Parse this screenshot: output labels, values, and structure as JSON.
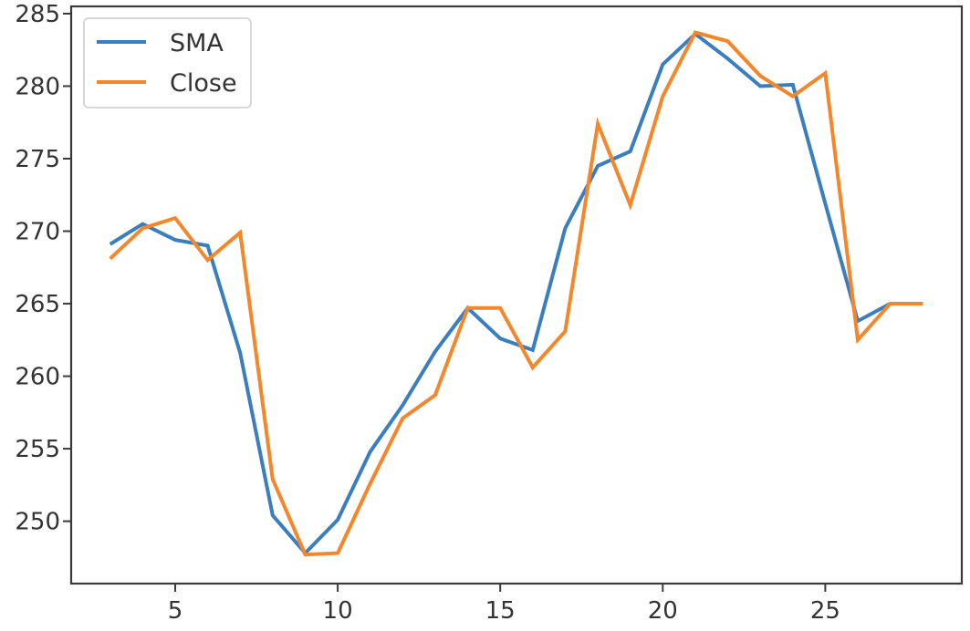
{
  "chart_data": {
    "type": "line",
    "x": [
      3,
      4,
      5,
      6,
      7,
      8,
      9,
      10,
      11,
      12,
      13,
      14,
      15,
      16,
      17,
      18,
      19,
      20,
      21,
      22,
      23,
      24,
      25,
      26,
      27,
      28
    ],
    "series": [
      {
        "name": "SMA",
        "color": "#3a7ebf",
        "x": [
          3,
          4,
          5,
          6,
          7,
          8,
          9,
          10,
          11,
          12,
          13,
          14,
          15,
          16,
          17,
          18,
          19,
          20,
          21,
          22,
          23,
          24,
          25,
          26,
          27
        ],
        "values": [
          269.1,
          270.5,
          269.4,
          269.0,
          261.6,
          250.4,
          247.8,
          250.1,
          254.8,
          258.0,
          261.7,
          264.7,
          262.6,
          261.8,
          270.2,
          274.5,
          275.5,
          281.5,
          283.6,
          281.9,
          280.0,
          280.1,
          271.9,
          263.8,
          265.0
        ]
      },
      {
        "name": "Close",
        "color": "#f5862a",
        "x": [
          3,
          4,
          5,
          6,
          7,
          8,
          9,
          10,
          11,
          12,
          13,
          14,
          15,
          16,
          17,
          18,
          19,
          20,
          21,
          22,
          23,
          24,
          25,
          26,
          27,
          28
        ],
        "values": [
          268.1,
          270.2,
          270.9,
          268.0,
          269.9,
          252.9,
          247.7,
          247.8,
          252.6,
          257.1,
          258.7,
          264.7,
          264.7,
          260.6,
          263.1,
          277.4,
          271.8,
          279.3,
          283.7,
          283.1,
          280.7,
          279.3,
          280.9,
          262.5,
          265.0,
          265.0
        ]
      }
    ],
    "xticks": [
      5,
      10,
      15,
      20,
      25
    ],
    "yticks": [
      250,
      255,
      260,
      265,
      270,
      275,
      280,
      285
    ],
    "xlim": [
      1.8,
      29.2
    ],
    "ylim": [
      245.7,
      285.5
    ],
    "grid": false,
    "legend": "upper-left"
  }
}
